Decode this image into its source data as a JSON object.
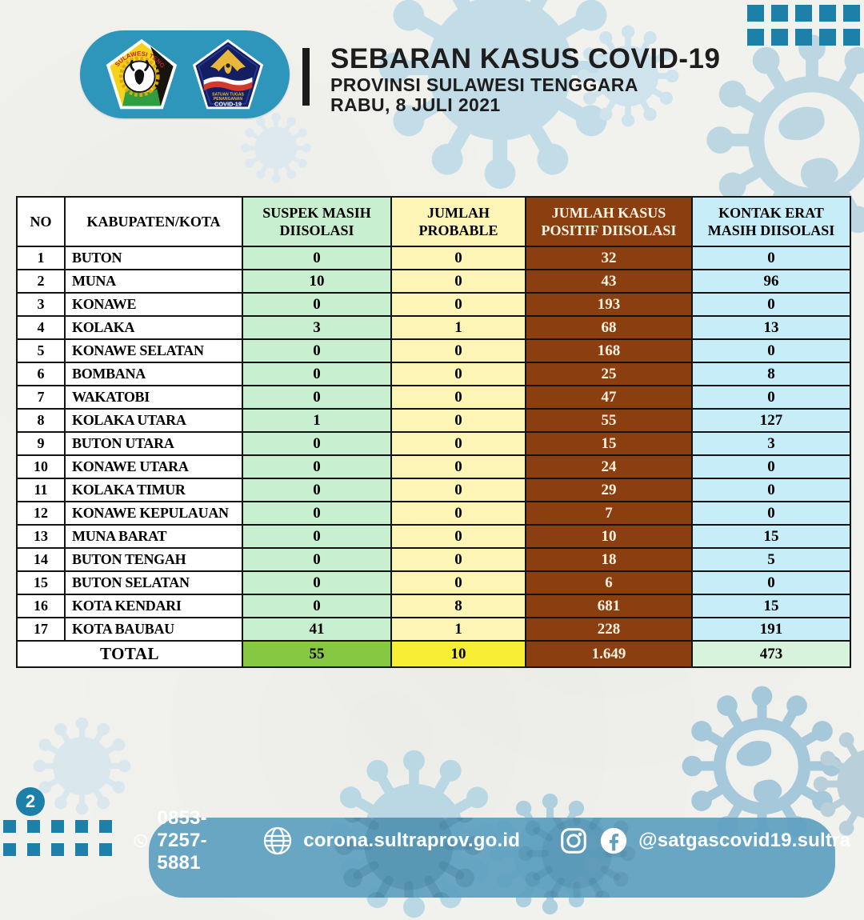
{
  "page": {
    "badge_number": "2"
  },
  "header": {
    "title": "SEBARAN KASUS COVID-19",
    "subtitle": "PROVINSI SULAWESI TENGGARA",
    "date": "RABU, 8 JULI 2021",
    "logo_sultra_text": "SULAWESI TENGGARA",
    "logo_satgas_line1": "SATUAN TUGAS",
    "logo_satgas_line2": "PENANGANAN",
    "logo_satgas_line3": "COVID-19"
  },
  "table": {
    "columns": [
      "NO",
      "KABUPATEN/KOTA",
      "SUSPEK MASIH DIISOLASI",
      "JUMLAH PROBABLE",
      "JUMLAH KASUS POSITIF DIISOLASI",
      "KONTAK ERAT MASIH DIISOLASI"
    ],
    "rows": [
      {
        "no": "1",
        "name": "BUTON",
        "suspek": "0",
        "probable": "0",
        "positif": "32",
        "kontak": "0"
      },
      {
        "no": "2",
        "name": "MUNA",
        "suspek": "10",
        "probable": "0",
        "positif": "43",
        "kontak": "96"
      },
      {
        "no": "3",
        "name": "KONAWE",
        "suspek": "0",
        "probable": "0",
        "positif": "193",
        "kontak": "0"
      },
      {
        "no": "4",
        "name": "KOLAKA",
        "suspek": "3",
        "probable": "1",
        "positif": "68",
        "kontak": "13"
      },
      {
        "no": "5",
        "name": "KONAWE SELATAN",
        "suspek": "0",
        "probable": "0",
        "positif": "168",
        "kontak": "0"
      },
      {
        "no": "6",
        "name": "BOMBANA",
        "suspek": "0",
        "probable": "0",
        "positif": "25",
        "kontak": "8"
      },
      {
        "no": "7",
        "name": "WAKATOBI",
        "suspek": "0",
        "probable": "0",
        "positif": "47",
        "kontak": "0"
      },
      {
        "no": "8",
        "name": "KOLAKA UTARA",
        "suspek": "1",
        "probable": "0",
        "positif": "55",
        "kontak": "127"
      },
      {
        "no": "9",
        "name": "BUTON UTARA",
        "suspek": "0",
        "probable": "0",
        "positif": "15",
        "kontak": "3"
      },
      {
        "no": "10",
        "name": "KONAWE UTARA",
        "suspek": "0",
        "probable": "0",
        "positif": "24",
        "kontak": "0"
      },
      {
        "no": "11",
        "name": "KOLAKA TIMUR",
        "suspek": "0",
        "probable": "0",
        "positif": "29",
        "kontak": "0"
      },
      {
        "no": "12",
        "name": "KONAWE KEPULAUAN",
        "suspek": "0",
        "probable": "0",
        "positif": "7",
        "kontak": "0"
      },
      {
        "no": "13",
        "name": "MUNA BARAT",
        "suspek": "0",
        "probable": "0",
        "positif": "10",
        "kontak": "15"
      },
      {
        "no": "14",
        "name": "BUTON TENGAH",
        "suspek": "0",
        "probable": "0",
        "positif": "18",
        "kontak": "5"
      },
      {
        "no": "15",
        "name": "BUTON SELATAN",
        "suspek": "0",
        "probable": "0",
        "positif": "6",
        "kontak": "0"
      },
      {
        "no": "16",
        "name": "KOTA KENDARI",
        "suspek": "0",
        "probable": "8",
        "positif": "681",
        "kontak": "15"
      },
      {
        "no": "17",
        "name": "KOTA BAUBAU",
        "suspek": "41",
        "probable": "1",
        "positif": "228",
        "kontak": "191"
      }
    ],
    "total": {
      "label": "TOTAL",
      "suspek": "55",
      "probable": "10",
      "positif": "1.649",
      "kontak": "473"
    }
  },
  "footer": {
    "phone": "0853-7257-5881",
    "website": "corona.sultraprov.go.id",
    "social": "@satgascovid19.sultra"
  },
  "colors": {
    "banner_teal": "#2e95bb",
    "squares_teal": "#1d80a8",
    "col_suspek": "#c8efcf",
    "col_probable": "#fdf5b5",
    "col_positif": "#8b3f10",
    "col_kontak": "#c7edf8",
    "total_suspek": "#86c842",
    "total_probable": "#f8ee33",
    "total_kontak": "#d8f3dc",
    "footer_blue": "#5fa0c1"
  }
}
